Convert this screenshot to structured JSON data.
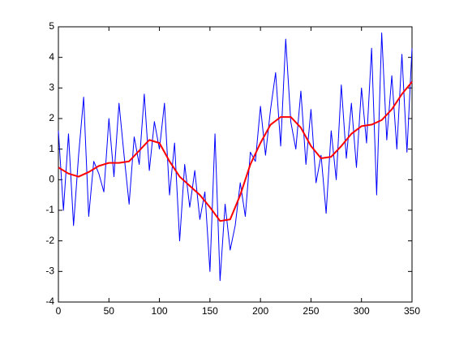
{
  "chart_data": {
    "type": "line",
    "xlim": [
      0,
      350
    ],
    "xticks": [
      0,
      50,
      100,
      150,
      200,
      250,
      300,
      350
    ],
    "ylim": [
      -4,
      5
    ],
    "yticks": [
      -4,
      -3,
      -2,
      -1,
      0,
      1,
      2,
      3,
      4,
      5
    ],
    "grid": false,
    "series": [
      {
        "color": "#0000ff",
        "width": 1,
        "x": [
          0,
          5,
          10,
          15,
          20,
          25,
          30,
          35,
          40,
          45,
          50,
          55,
          60,
          65,
          70,
          75,
          80,
          85,
          90,
          95,
          100,
          105,
          110,
          115,
          120,
          125,
          130,
          135,
          140,
          145,
          150,
          155,
          160,
          165,
          170,
          175,
          180,
          185,
          190,
          195,
          200,
          205,
          210,
          215,
          220,
          225,
          230,
          235,
          240,
          245,
          250,
          255,
          260,
          265,
          270,
          275,
          280,
          285,
          290,
          295,
          300,
          305,
          310,
          315,
          320,
          325,
          330,
          335,
          340,
          345,
          350
        ],
        "values": [
          1.6,
          -1.0,
          1.5,
          -1.5,
          0.8,
          2.7,
          -1.2,
          0.6,
          0.2,
          -0.4,
          2.0,
          0.1,
          2.5,
          0.8,
          -0.8,
          1.4,
          0.5,
          2.8,
          0.3,
          1.9,
          1.0,
          2.5,
          -0.5,
          1.2,
          -2.0,
          0.5,
          -0.9,
          0.3,
          -1.3,
          -0.4,
          -3.0,
          1.5,
          -3.3,
          -0.8,
          -2.3,
          -1.5,
          -0.1,
          -1.2,
          0.9,
          0.6,
          2.4,
          0.8,
          2.3,
          3.5,
          1.1,
          4.6,
          1.9,
          1.0,
          2.9,
          0.5,
          2.3,
          -0.1,
          0.8,
          -1.1,
          1.6,
          0.0,
          3.1,
          0.7,
          2.5,
          0.4,
          3.0,
          1.2,
          4.3,
          -0.5,
          4.8,
          1.3,
          3.4,
          1.0,
          4.1,
          0.9,
          4.3
        ]
      },
      {
        "color": "#ff0000",
        "width": 2,
        "x": [
          0,
          10,
          20,
          30,
          40,
          50,
          60,
          70,
          80,
          90,
          100,
          110,
          120,
          130,
          140,
          150,
          160,
          170,
          180,
          190,
          200,
          210,
          220,
          230,
          240,
          250,
          260,
          270,
          280,
          290,
          300,
          310,
          320,
          330,
          340,
          350
        ],
        "values": [
          0.4,
          0.2,
          0.1,
          0.25,
          0.45,
          0.55,
          0.55,
          0.6,
          0.95,
          1.3,
          1.2,
          0.6,
          0.1,
          -0.2,
          -0.5,
          -0.9,
          -1.35,
          -1.3,
          -0.5,
          0.5,
          1.2,
          1.8,
          2.05,
          2.05,
          1.7,
          1.1,
          0.7,
          0.75,
          1.1,
          1.5,
          1.75,
          1.8,
          1.95,
          2.3,
          2.8,
          3.2
        ]
      }
    ]
  }
}
